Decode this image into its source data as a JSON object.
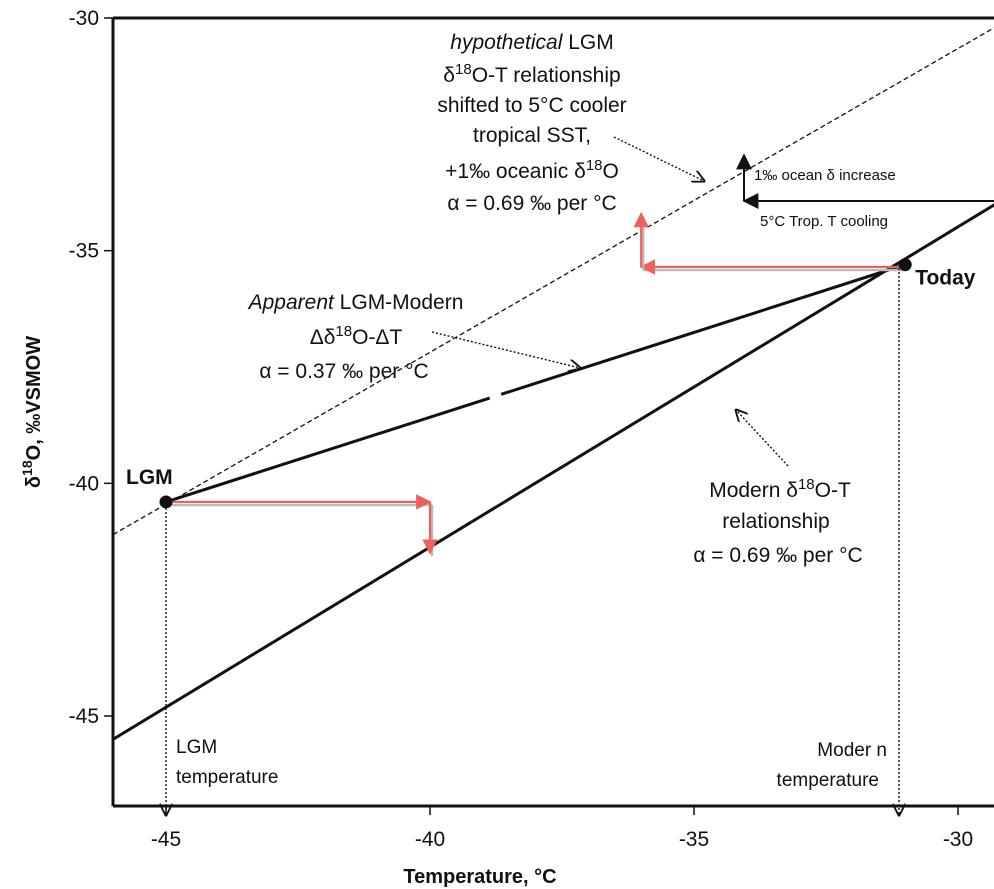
{
  "chart_data": {
    "type": "line",
    "xlabel": "Temperature, °C",
    "ylabel": "δ18O, ‰VSMOW",
    "xlim": [
      -46,
      -29
    ],
    "ylim": [
      -47,
      -30
    ],
    "x_ticks": [
      -45,
      -40,
      -35,
      -30
    ],
    "y_ticks": [
      -30,
      -35,
      -40,
      -45
    ],
    "grid": false,
    "series": [
      {
        "style": "solid",
        "x": [
          -46,
          -29
        ],
        "y": [
          -45.5,
          -33.8
        ]
      },
      {
        "style": "solid-gapped",
        "x": [
          -45,
          -31
        ],
        "y": [
          -40.4,
          -35.3
        ]
      },
      {
        "style": "dashed",
        "x": [
          -46,
          -29.3
        ],
        "y": [
          -41.1,
          -30.2
        ]
      }
    ],
    "points": [
      {
        "label": "LGM",
        "x": -45,
        "y": -40.4
      },
      {
        "label": "Today",
        "x": -31,
        "y": -35.3
      }
    ],
    "red_arrows": [
      {
        "from": [
          -45,
          -40.4
        ],
        "to": [
          -40,
          -40.4
        ]
      },
      {
        "from": [
          -40,
          -40.4
        ],
        "to": [
          -40,
          -41.5
        ]
      },
      {
        "from": [
          -31,
          -35.35
        ],
        "to": [
          -36,
          -35.35
        ]
      },
      {
        "from": [
          -36,
          -35.35
        ],
        "to": [
          -36,
          -34.2
        ]
      }
    ],
    "annotations": {
      "hypothetical": {
        "line1_italic": "hypothetical",
        "line1_rest": " LGM",
        "line2_pre": "δ",
        "line2_sup": "18",
        "line2_post": "O-T relationship",
        "line3": "shifted to 5°C cooler",
        "line4": "tropical SST,",
        "line5_pre": "+1‰ oceanic δ",
        "line5_sup": "18",
        "line5_post": "O",
        "line6": "α = 0.69 ‰  per °C"
      },
      "apparent": {
        "line1_italic": "Apparent",
        "line1_rest": " LGM-Modern",
        "line2_pre": "Δδ",
        "line2_sup": "18",
        "line2_post": "O-ΔT",
        "line3": "α = 0.37 ‰  per °C"
      },
      "modern": {
        "line1_pre": "Modern δ",
        "line1_sup": "18",
        "line1_post": "O-T",
        "line2": "relationship",
        "line3": "α = 0.69 ‰  per °C"
      },
      "ocean_increase": "1‰ ocean δ increase",
      "trop_cooling": "5°C Trop. T cooling",
      "lgm_temp_line1": "LGM",
      "lgm_temp_line2": "temperature",
      "modern_temp_line1": "Moder n",
      "modern_temp_line2": "temperature"
    }
  }
}
